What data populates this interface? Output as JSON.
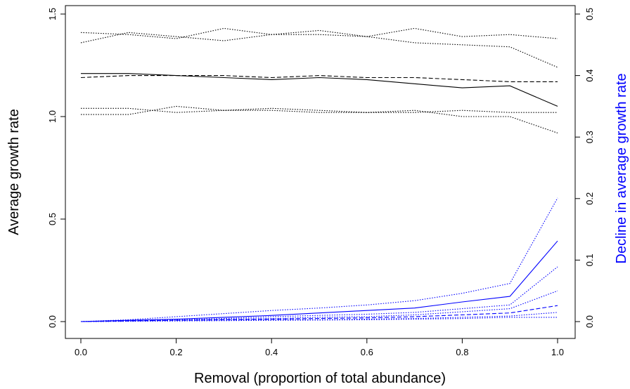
{
  "chart_data": {
    "type": "line",
    "xlabel": "Removal (proportion of total abundance)",
    "ylabel_left": "Average growth rate",
    "ylabel_right": "Decline in average growth rate",
    "x_ticks": [
      "0.0",
      "0.2",
      "0.4",
      "0.6",
      "0.8",
      "1.0"
    ],
    "y_left_ticks": [
      "0.0",
      "0.5",
      "1.0",
      "1.5"
    ],
    "y_right_ticks": [
      "0.0",
      "0.1",
      "0.2",
      "0.3",
      "0.4",
      "0.5"
    ],
    "xlim": [
      0,
      1
    ],
    "ylim_left": [
      0,
      1.5
    ],
    "ylim_right": [
      0,
      0.5
    ],
    "grid": false,
    "colors": {
      "left_series": "#000000",
      "right_series": "#0000ff"
    },
    "x": [
      0,
      0.1,
      0.2,
      0.3,
      0.4,
      0.5,
      0.6,
      0.7,
      0.8,
      0.9,
      1.0
    ],
    "series_left": [
      {
        "style": "dotted",
        "values": [
          1.41,
          1.4,
          1.38,
          1.43,
          1.4,
          1.4,
          1.39,
          1.43,
          1.39,
          1.4,
          1.38
        ]
      },
      {
        "style": "dotted",
        "values": [
          1.36,
          1.41,
          1.39,
          1.37,
          1.4,
          1.42,
          1.39,
          1.36,
          1.35,
          1.34,
          1.24
        ]
      },
      {
        "style": "solid",
        "values": [
          1.21,
          1.21,
          1.2,
          1.19,
          1.18,
          1.19,
          1.18,
          1.16,
          1.14,
          1.15,
          1.05
        ]
      },
      {
        "style": "dashed",
        "values": [
          1.19,
          1.2,
          1.2,
          1.2,
          1.19,
          1.2,
          1.19,
          1.19,
          1.18,
          1.17,
          1.17
        ]
      },
      {
        "style": "dotted",
        "values": [
          1.04,
          1.04,
          1.02,
          1.03,
          1.04,
          1.03,
          1.02,
          1.02,
          1.03,
          1.02,
          1.02
        ]
      },
      {
        "style": "dotted",
        "values": [
          1.01,
          1.01,
          1.05,
          1.03,
          1.03,
          1.02,
          1.02,
          1.03,
          1.0,
          1.0,
          0.92
        ]
      }
    ],
    "series_right": [
      {
        "style": "dotted",
        "values": [
          0.0,
          0.003,
          0.008,
          0.013,
          0.018,
          0.022,
          0.027,
          0.034,
          0.046,
          0.062,
          0.201
        ]
      },
      {
        "style": "solid",
        "values": [
          0.0,
          0.002,
          0.004,
          0.007,
          0.01,
          0.014,
          0.018,
          0.022,
          0.032,
          0.041,
          0.131
        ]
      },
      {
        "style": "dotted",
        "values": [
          0.0,
          0.002,
          0.003,
          0.005,
          0.008,
          0.01,
          0.012,
          0.015,
          0.021,
          0.027,
          0.089
        ]
      },
      {
        "style": "dotted",
        "values": [
          0.0,
          0.001,
          0.002,
          0.004,
          0.005,
          0.007,
          0.008,
          0.011,
          0.016,
          0.021,
          0.05
        ]
      },
      {
        "style": "dashed",
        "values": [
          0.0,
          0.001,
          0.002,
          0.003,
          0.004,
          0.005,
          0.006,
          0.008,
          0.011,
          0.014,
          0.026
        ]
      },
      {
        "style": "dotted",
        "values": [
          0.0,
          0.001,
          0.001,
          0.002,
          0.003,
          0.003,
          0.004,
          0.005,
          0.007,
          0.009,
          0.015
        ]
      },
      {
        "style": "dotted",
        "values": [
          0.0,
          0.0005,
          0.001,
          0.0015,
          0.002,
          0.0025,
          0.003,
          0.004,
          0.005,
          0.007,
          0.007
        ]
      }
    ]
  }
}
